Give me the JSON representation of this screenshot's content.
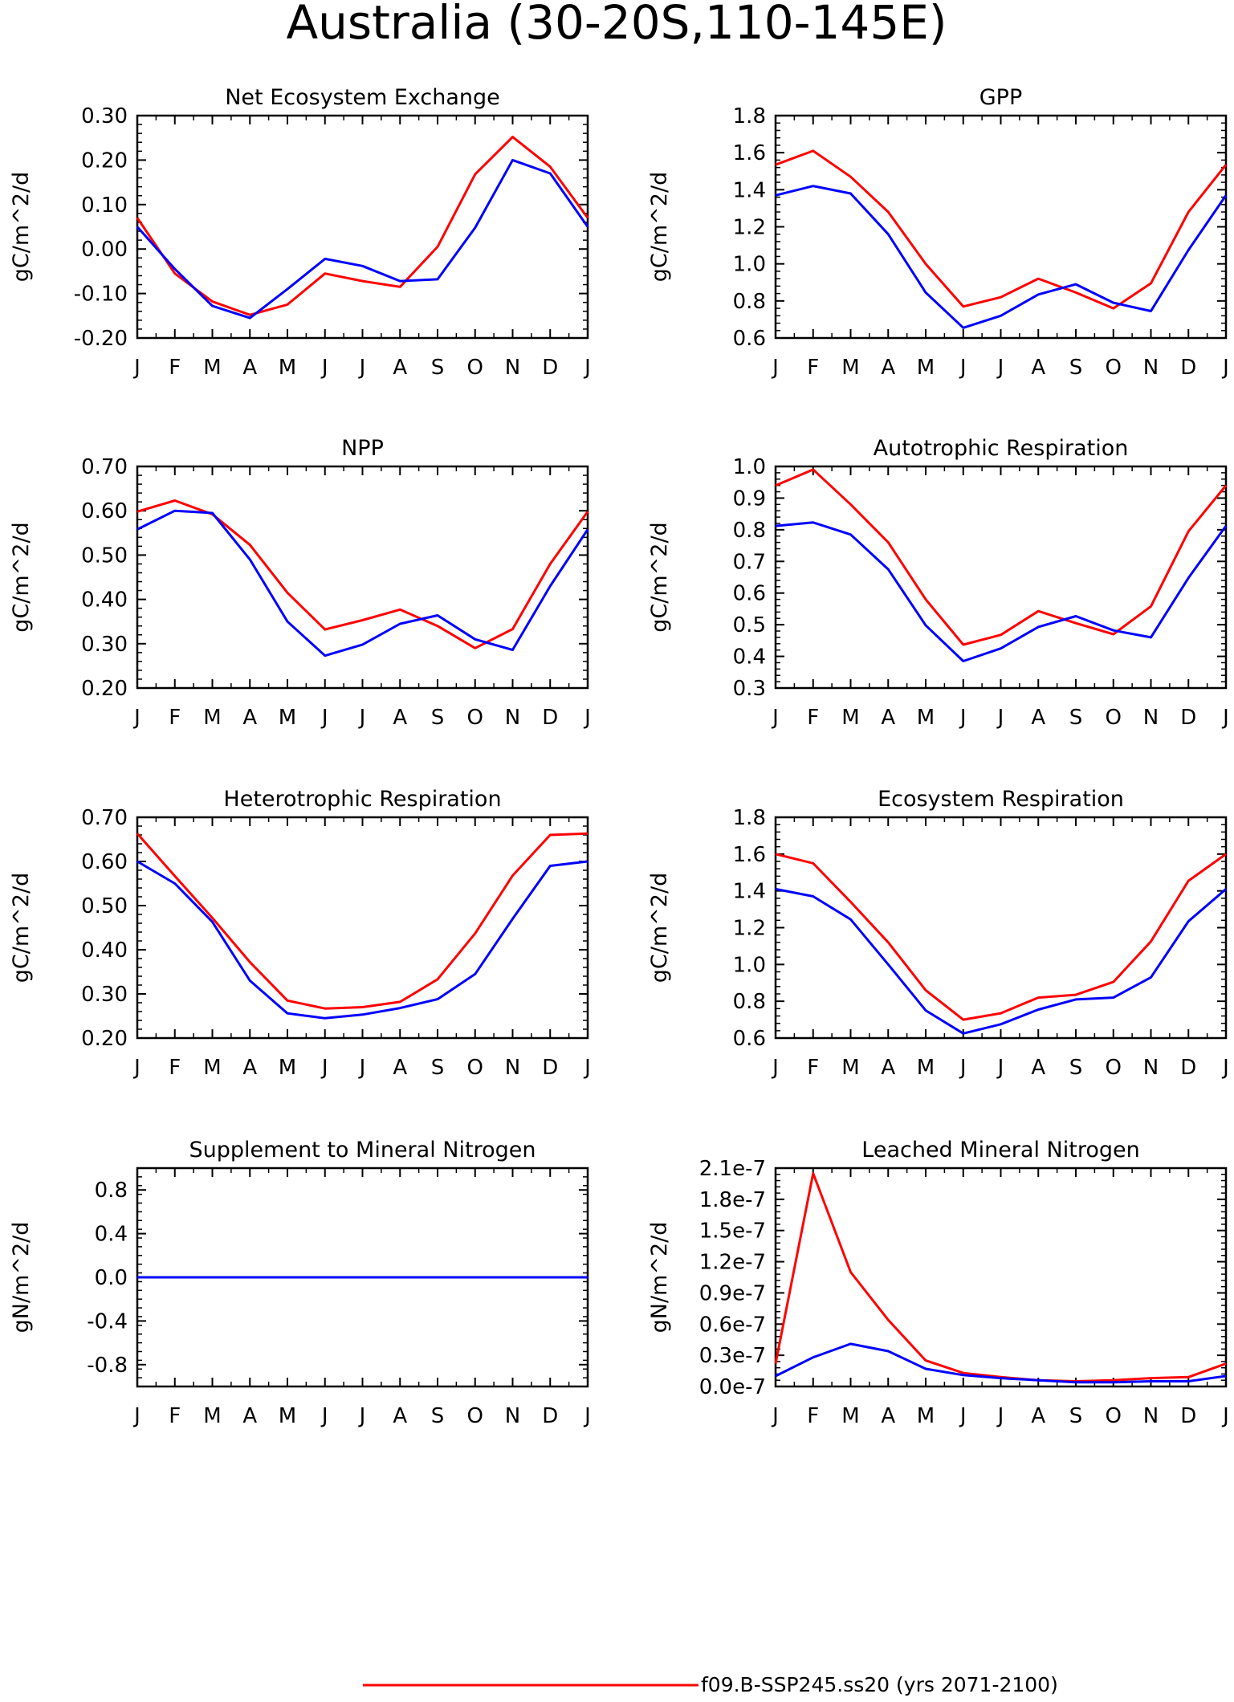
{
  "figure": {
    "title": "Australia (30-20S,110-145E)",
    "colors": {
      "series_red": "#ff0000",
      "series_blue": "#0000ff",
      "axes": "#000000"
    },
    "legend": {
      "label": "f09.B-SSP245.ss20 (yrs 2071-2100)",
      "color": "#ff0000"
    }
  },
  "chart_data": [
    {
      "type": "line",
      "title": "Net Ecosystem Exchange",
      "ylabel": "gC/m^2/d",
      "categories": [
        "J",
        "F",
        "M",
        "A",
        "M",
        "J",
        "J",
        "A",
        "S",
        "O",
        "N",
        "D",
        "J"
      ],
      "ylim": [
        -0.2,
        0.3
      ],
      "yticks": [
        -0.2,
        -0.1,
        0.0,
        0.1,
        0.2,
        0.3
      ],
      "ytick_labels": [
        "-0.20",
        "-0.10",
        "0.00",
        "0.10",
        "0.20",
        "0.30"
      ],
      "series": [
        {
          "color": "#ff0000",
          "values": [
            0.07,
            -0.055,
            -0.118,
            -0.148,
            -0.125,
            -0.055,
            -0.072,
            -0.085,
            0.005,
            0.168,
            0.252,
            0.185,
            0.07
          ]
        },
        {
          "color": "#0000ff",
          "values": [
            0.05,
            -0.045,
            -0.128,
            -0.155,
            -0.09,
            -0.022,
            -0.038,
            -0.072,
            -0.068,
            0.048,
            0.2,
            0.17,
            0.05
          ]
        }
      ]
    },
    {
      "type": "line",
      "title": "GPP",
      "ylabel": "gC/m^2/d",
      "categories": [
        "J",
        "F",
        "M",
        "A",
        "M",
        "J",
        "J",
        "A",
        "S",
        "O",
        "N",
        "D",
        "J"
      ],
      "ylim": [
        0.6,
        1.8
      ],
      "yticks": [
        0.6,
        0.8,
        1.0,
        1.2,
        1.4,
        1.6,
        1.8
      ],
      "ytick_labels": [
        "0.6",
        "0.8",
        "1.0",
        "1.2",
        "1.4",
        "1.6",
        "1.8"
      ],
      "series": [
        {
          "color": "#ff0000",
          "values": [
            1.535,
            1.61,
            1.47,
            1.28,
            1.0,
            0.77,
            0.82,
            0.92,
            0.845,
            0.76,
            0.895,
            1.28,
            1.535
          ]
        },
        {
          "color": "#0000ff",
          "values": [
            1.37,
            1.42,
            1.38,
            1.16,
            0.845,
            0.655,
            0.72,
            0.835,
            0.89,
            0.79,
            0.745,
            1.075,
            1.37
          ]
        }
      ]
    },
    {
      "type": "line",
      "title": "NPP",
      "ylabel": "gC/m^2/d",
      "categories": [
        "J",
        "F",
        "M",
        "A",
        "M",
        "J",
        "J",
        "A",
        "S",
        "O",
        "N",
        "D",
        "J"
      ],
      "ylim": [
        0.2,
        0.7
      ],
      "yticks": [
        0.2,
        0.3,
        0.4,
        0.5,
        0.6,
        0.7
      ],
      "ytick_labels": [
        "0.20",
        "0.30",
        "0.40",
        "0.50",
        "0.60",
        "0.70"
      ],
      "series": [
        {
          "color": "#ff0000",
          "values": [
            0.598,
            0.623,
            0.592,
            0.523,
            0.415,
            0.332,
            0.353,
            0.377,
            0.34,
            0.29,
            0.333,
            0.48,
            0.598
          ]
        },
        {
          "color": "#0000ff",
          "values": [
            0.558,
            0.6,
            0.595,
            0.49,
            0.35,
            0.273,
            0.298,
            0.345,
            0.364,
            0.31,
            0.286,
            0.43,
            0.558
          ]
        }
      ]
    },
    {
      "type": "line",
      "title": "Autotrophic Respiration",
      "ylabel": "gC/m^2/d",
      "categories": [
        "J",
        "F",
        "M",
        "A",
        "M",
        "J",
        "J",
        "A",
        "S",
        "O",
        "N",
        "D",
        "J"
      ],
      "ylim": [
        0.3,
        1.0
      ],
      "yticks": [
        0.3,
        0.4,
        0.5,
        0.6,
        0.7,
        0.8,
        0.9,
        1.0
      ],
      "ytick_labels": [
        "0.3",
        "0.4",
        "0.5",
        "0.6",
        "0.7",
        "0.8",
        "0.9",
        "1.0"
      ],
      "series": [
        {
          "color": "#ff0000",
          "values": [
            0.94,
            0.99,
            0.88,
            0.76,
            0.58,
            0.437,
            0.468,
            0.543,
            0.505,
            0.47,
            0.558,
            0.795,
            0.94
          ]
        },
        {
          "color": "#0000ff",
          "values": [
            0.812,
            0.823,
            0.785,
            0.675,
            0.498,
            0.385,
            0.425,
            0.493,
            0.527,
            0.482,
            0.46,
            0.648,
            0.812
          ]
        }
      ]
    },
    {
      "type": "line",
      "title": "Heterotrophic Respiration",
      "ylabel": "gC/m^2/d",
      "categories": [
        "J",
        "F",
        "M",
        "A",
        "M",
        "J",
        "J",
        "A",
        "S",
        "O",
        "N",
        "D",
        "J"
      ],
      "ylim": [
        0.2,
        0.7
      ],
      "yticks": [
        0.2,
        0.3,
        0.4,
        0.5,
        0.6,
        0.7
      ],
      "ytick_labels": [
        "0.20",
        "0.30",
        "0.40",
        "0.50",
        "0.60",
        "0.70"
      ],
      "series": [
        {
          "color": "#ff0000",
          "values": [
            0.663,
            0.567,
            0.472,
            0.372,
            0.285,
            0.267,
            0.27,
            0.282,
            0.333,
            0.437,
            0.568,
            0.66,
            0.663
          ]
        },
        {
          "color": "#0000ff",
          "values": [
            0.6,
            0.55,
            0.463,
            0.33,
            0.256,
            0.245,
            0.253,
            0.268,
            0.288,
            0.345,
            0.47,
            0.59,
            0.6
          ]
        }
      ]
    },
    {
      "type": "line",
      "title": "Ecosystem Respiration",
      "ylabel": "gC/m^2/d",
      "categories": [
        "J",
        "F",
        "M",
        "A",
        "M",
        "J",
        "J",
        "A",
        "S",
        "O",
        "N",
        "D",
        "J"
      ],
      "ylim": [
        0.6,
        1.8
      ],
      "yticks": [
        0.6,
        0.8,
        1.0,
        1.2,
        1.4,
        1.6,
        1.8
      ],
      "ytick_labels": [
        "0.6",
        "0.8",
        "1.0",
        "1.2",
        "1.4",
        "1.6",
        "1.8"
      ],
      "series": [
        {
          "color": "#ff0000",
          "values": [
            1.6,
            1.55,
            1.34,
            1.12,
            0.86,
            0.7,
            0.735,
            0.82,
            0.835,
            0.905,
            1.125,
            1.455,
            1.6
          ]
        },
        {
          "color": "#0000ff",
          "values": [
            1.41,
            1.37,
            1.245,
            1.0,
            0.75,
            0.625,
            0.675,
            0.755,
            0.81,
            0.82,
            0.93,
            1.235,
            1.41
          ]
        }
      ]
    },
    {
      "type": "line",
      "title": "Supplement to Mineral Nitrogen",
      "ylabel": "gN/m^2/d",
      "categories": [
        "J",
        "F",
        "M",
        "A",
        "M",
        "J",
        "J",
        "A",
        "S",
        "O",
        "N",
        "D",
        "J"
      ],
      "ylim": [
        -1.0,
        1.0
      ],
      "yticks": [
        -0.8,
        -0.4,
        0.0,
        0.4,
        0.8
      ],
      "ytick_labels": [
        "-0.8",
        "-0.4",
        "0.0",
        "0.4",
        "0.8"
      ],
      "series": [
        {
          "color": "#ff0000",
          "values": [
            0,
            0,
            0,
            0,
            0,
            0,
            0,
            0,
            0,
            0,
            0,
            0,
            0
          ]
        },
        {
          "color": "#0000ff",
          "values": [
            0,
            0,
            0,
            0,
            0,
            0,
            0,
            0,
            0,
            0,
            0,
            0,
            0
          ]
        }
      ]
    },
    {
      "type": "line",
      "title": "Leached Mineral Nitrogen",
      "ylabel": "gN/m^2/d",
      "categories": [
        "J",
        "F",
        "M",
        "A",
        "M",
        "J",
        "J",
        "A",
        "S",
        "O",
        "N",
        "D",
        "J"
      ],
      "ylim": [
        0.0,
        2.1e-07
      ],
      "yticks": [
        0.0,
        3e-08,
        6e-08,
        9e-08,
        1.2e-07,
        1.5e-07,
        1.8e-07,
        2.1e-07
      ],
      "ytick_labels": [
        "0.0e-7",
        "0.3e-7",
        "0.6e-7",
        "0.9e-7",
        "1.2e-7",
        "1.5e-7",
        "1.8e-7",
        "2.1e-7"
      ],
      "series": [
        {
          "color": "#ff0000",
          "values": [
            2.2e-08,
            2.05e-07,
            1.1e-07,
            6.4e-08,
            2.5e-08,
            1.3e-08,
            9e-09,
            6e-09,
            5e-09,
            6e-09,
            8e-09,
            9e-09,
            2.2e-08
          ]
        },
        {
          "color": "#0000ff",
          "values": [
            1e-08,
            2.8e-08,
            4.1e-08,
            3.4e-08,
            1.7e-08,
            1.1e-08,
            8e-09,
            6e-09,
            4e-09,
            4e-09,
            5e-09,
            5e-09,
            1e-08
          ]
        }
      ]
    }
  ]
}
